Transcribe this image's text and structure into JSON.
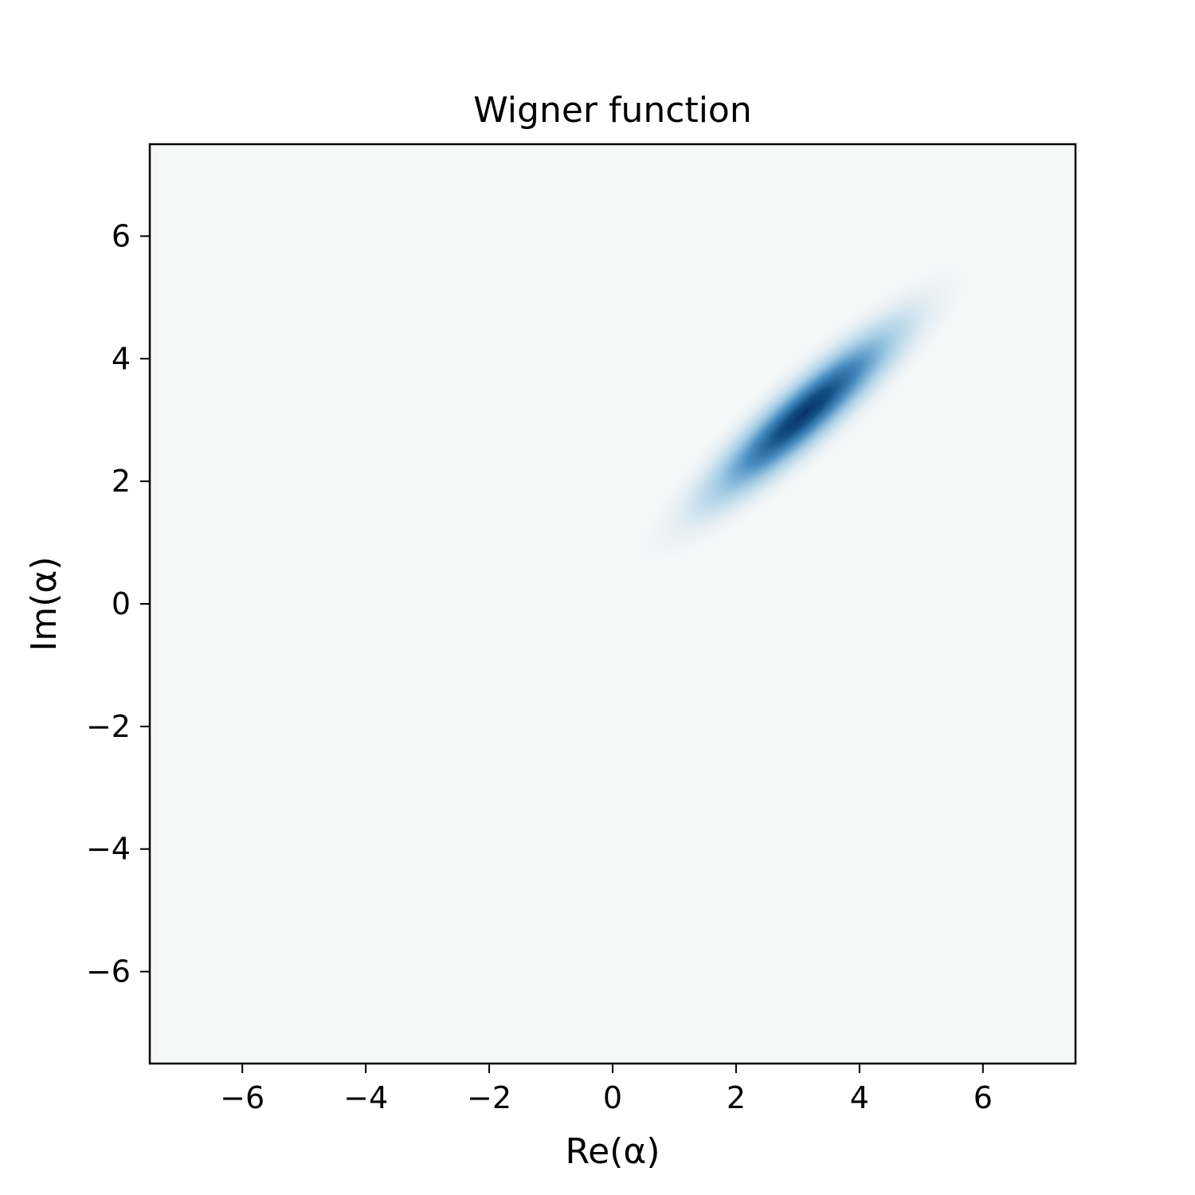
{
  "chart_data": {
    "type": "heatmap",
    "title": "Wigner function",
    "xlabel": "Re(α)",
    "ylabel": "Im(α)",
    "xlim": [
      -7.5,
      7.5
    ],
    "ylim": [
      -7.5,
      7.5
    ],
    "x_ticks": [
      -6,
      -4,
      -2,
      0,
      2,
      4,
      6
    ],
    "x_tick_labels": [
      "−6",
      "−4",
      "−2",
      "0",
      "2",
      "4",
      "6"
    ],
    "y_ticks": [
      -6,
      -4,
      -2,
      0,
      2,
      4,
      6
    ],
    "y_tick_labels": [
      "−6",
      "−4",
      "−2",
      "0",
      "2",
      "4",
      "6"
    ],
    "grid": false,
    "colormap": "diverging blue (peak #08306b, background #f5f7f7)",
    "peak": {
      "re": 3.1,
      "im": 3.1
    },
    "major_axis_angle_deg": 42,
    "sigma_major": 1.45,
    "sigma_minor": 0.32
  }
}
